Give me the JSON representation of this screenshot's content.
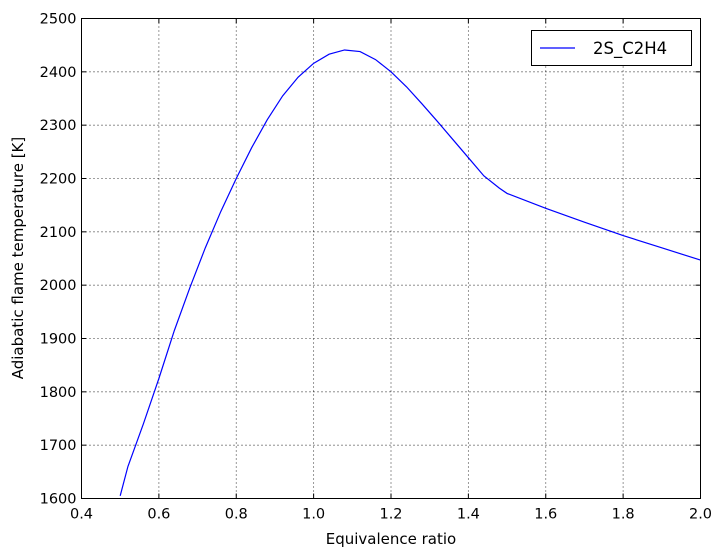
{
  "chart_data": {
    "type": "line",
    "title": "",
    "xlabel": "Equivalence ratio",
    "ylabel": "Adiabatic flame temperature [K]",
    "xlim": [
      0.4,
      2.0
    ],
    "ylim": [
      1600,
      2500
    ],
    "xticks": [
      0.4,
      0.6,
      0.8,
      1.0,
      1.2,
      1.4,
      1.6,
      1.8,
      2.0
    ],
    "xtick_labels": [
      "0.4",
      "0.6",
      "0.8",
      "1.0",
      "1.2",
      "1.4",
      "1.6",
      "1.8",
      "2.0"
    ],
    "yticks": [
      1600,
      1700,
      1800,
      1900,
      2000,
      2100,
      2200,
      2300,
      2400,
      2500
    ],
    "ytick_labels": [
      "1600",
      "1700",
      "1800",
      "1900",
      "2000",
      "2100",
      "2200",
      "2300",
      "2400",
      "2500"
    ],
    "grid": true,
    "legend_position": "top-right",
    "series": [
      {
        "name": "2S_C2H4",
        "color": "#0000ff",
        "x": [
          0.5,
          0.52,
          0.56,
          0.6,
          0.64,
          0.68,
          0.72,
          0.76,
          0.8,
          0.84,
          0.88,
          0.92,
          0.96,
          1.0,
          1.04,
          1.08,
          1.12,
          1.16,
          1.2,
          1.24,
          1.28,
          1.32,
          1.36,
          1.4,
          1.44,
          1.48,
          1.5,
          1.6,
          1.7,
          1.8,
          1.9,
          2.0
        ],
        "y": [
          1605,
          1660,
          1740,
          1825,
          1915,
          1995,
          2070,
          2138,
          2200,
          2258,
          2310,
          2355,
          2390,
          2416,
          2433,
          2441,
          2438,
          2423,
          2400,
          2372,
          2340,
          2307,
          2273,
          2239,
          2205,
          2182,
          2172,
          2144,
          2118,
          2093,
          2070,
          2047
        ]
      }
    ]
  }
}
